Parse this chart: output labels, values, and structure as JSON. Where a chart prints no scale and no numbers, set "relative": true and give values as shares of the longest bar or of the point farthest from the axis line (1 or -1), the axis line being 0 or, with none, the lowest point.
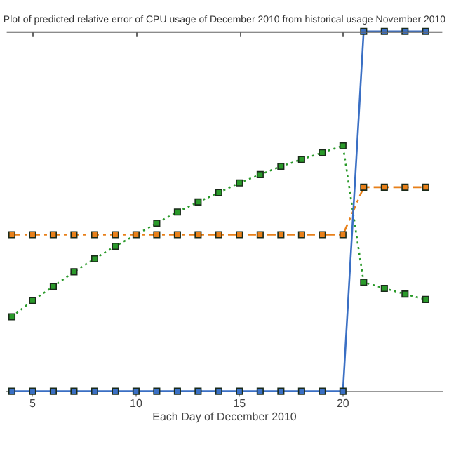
{
  "chart_data": {
    "type": "line",
    "title": "Plot of predicted relative error of CPU usage of December 2010 from historical usage November 2010",
    "xlabel": "Each Day of December 2010",
    "relative": true,
    "marker": "square",
    "legend": false,
    "grid": false,
    "x": [
      4,
      5,
      6,
      7,
      8,
      9,
      10,
      11,
      12,
      13,
      14,
      15,
      16,
      17,
      18,
      19,
      20,
      21,
      22,
      23,
      24
    ],
    "xlim": [
      3.75,
      24.8
    ],
    "xticks": [
      5,
      10,
      15,
      20
    ],
    "series": [
      {
        "color": "#3a6fc4",
        "line_style": "solid",
        "values": [
          0,
          0,
          0,
          0,
          0,
          0,
          0,
          0,
          0,
          0,
          0,
          0,
          0,
          0,
          0,
          0,
          0,
          1,
          1,
          1,
          1
        ]
      },
      {
        "color": "#e8801a",
        "line_style": "dashed",
        "values": [
          0.435,
          0.435,
          0.435,
          0.435,
          0.435,
          0.435,
          0.435,
          0.435,
          0.435,
          0.435,
          0.435,
          0.435,
          0.435,
          0.435,
          0.435,
          0.435,
          0.435,
          0.567,
          0.567,
          0.567,
          0.567
        ]
      },
      {
        "color": "#2a9a2a",
        "line_style": "dotted",
        "values": [
          0.207,
          0.252,
          0.291,
          0.332,
          0.368,
          0.403,
          null,
          0.467,
          0.498,
          0.526,
          0.552,
          0.579,
          0.602,
          0.625,
          0.644,
          0.663,
          0.682,
          0.303,
          0.286,
          0.27,
          0.255
        ]
      }
    ]
  }
}
